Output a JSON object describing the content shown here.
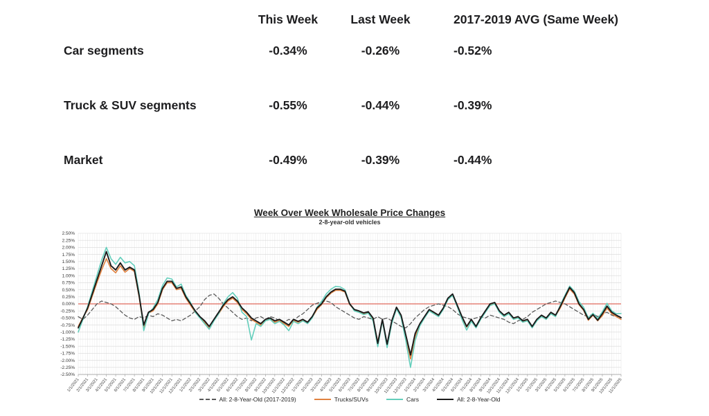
{
  "table": {
    "headers": [
      "This Week",
      "Last Week",
      "2017-2019 AVG (Same Week)"
    ],
    "rows": [
      {
        "label": "Car segments",
        "values": [
          "-0.34%",
          "-0.26%",
          "-0.52%"
        ]
      },
      {
        "label": "Truck & SUV segments",
        "values": [
          "-0.55%",
          "-0.44%",
          "-0.39%"
        ]
      },
      {
        "label": "Market",
        "values": [
          "-0.49%",
          "-0.39%",
          "-0.44%"
        ]
      }
    ]
  },
  "chart_data": {
    "type": "line",
    "title": "Week Over Week Wholesale Price Changes",
    "subtitle": "2-8-year-old vehicles",
    "ylabel": "",
    "xlabel": "",
    "ylim": [
      -2.5,
      2.5
    ],
    "ytick_step": 0.25,
    "grid": true,
    "legend_position": "bottom",
    "zero_line_color": "#e0695c",
    "points_per_month": 2,
    "ytick_labels": [
      "2.50%",
      "2.25%",
      "2.00%",
      "1.75%",
      "1.50%",
      "1.25%",
      "1.00%",
      "0.75%",
      "0.50%",
      "0.25%",
      "0.00%",
      "-0.25%",
      "-0.50%",
      "-0.75%",
      "-1.00%",
      "-1.25%",
      "-1.50%",
      "-1.75%",
      "-2.00%",
      "-2.25%",
      "-2.50%"
    ],
    "xtick_labels": [
      "1/1/2021",
      "2/1/2021",
      "3/1/2021",
      "4/1/2021",
      "5/1/2021",
      "6/1/2021",
      "7/1/2021",
      "8/1/2021",
      "9/1/2021",
      "10/1/2021",
      "11/1/2021",
      "12/1/2021",
      "1/1/2022",
      "2/1/2022",
      "3/1/2022",
      "4/1/2022",
      "5/1/2022",
      "6/1/2022",
      "7/1/2022",
      "8/1/2022",
      "9/1/2022",
      "10/1/2022",
      "11/1/2022",
      "12/1/2022",
      "1/1/2023",
      "2/1/2023",
      "3/1/2023",
      "4/1/2023",
      "5/1/2023",
      "6/1/2023",
      "7/1/2023",
      "8/1/2023",
      "9/1/2023",
      "10/1/2023",
      "11/1/2023",
      "12/1/2023",
      "1/1/2024",
      "2/1/2024",
      "3/1/2024",
      "4/1/2024",
      "5/1/2024",
      "6/1/2024",
      "7/1/2024",
      "8/1/2024",
      "9/1/2024",
      "10/1/2024",
      "11/1/2024",
      "12/1/2024",
      "1/1/2025",
      "2/1/2025",
      "3/1/2025",
      "4/1/2025",
      "5/1/2025",
      "6/1/2025",
      "7/1/2025",
      "8/1/2025",
      "9/1/2025",
      "10/1/2025",
      "11/1/2025"
    ],
    "series": [
      {
        "name": "All: 2-8-Year-Old (2017-2019)",
        "color": "#595959",
        "dash": true,
        "width": 1.3,
        "values": [
          -0.45,
          -0.55,
          -0.4,
          -0.2,
          0.0,
          0.1,
          0.05,
          0.0,
          -0.1,
          -0.25,
          -0.4,
          -0.5,
          -0.55,
          -0.45,
          -0.5,
          -0.4,
          -0.45,
          -0.35,
          -0.4,
          -0.5,
          -0.6,
          -0.55,
          -0.6,
          -0.5,
          -0.4,
          -0.25,
          -0.1,
          0.15,
          0.3,
          0.35,
          0.2,
          0.0,
          -0.15,
          -0.3,
          -0.45,
          -0.55,
          -0.5,
          -0.6,
          -0.5,
          -0.45,
          -0.55,
          -0.45,
          -0.5,
          -0.6,
          -0.65,
          -0.55,
          -0.6,
          -0.45,
          -0.35,
          -0.2,
          -0.05,
          0.02,
          0.08,
          0.1,
          0.05,
          -0.1,
          -0.2,
          -0.3,
          -0.4,
          -0.5,
          -0.55,
          -0.45,
          -0.5,
          -0.55,
          -0.45,
          -0.55,
          -0.5,
          -0.6,
          -0.7,
          -0.8,
          -0.85,
          -0.7,
          -0.5,
          -0.35,
          -0.2,
          -0.1,
          -0.05,
          0.0,
          -0.05,
          -0.1,
          -0.2,
          -0.35,
          -0.45,
          -0.5,
          -0.55,
          -0.5,
          -0.45,
          -0.5,
          -0.4,
          -0.45,
          -0.5,
          -0.55,
          -0.65,
          -0.7,
          -0.6,
          -0.55,
          -0.45,
          -0.3,
          -0.2,
          -0.1,
          0.0,
          0.05,
          0.1,
          0.05,
          0.0,
          -0.1,
          -0.2,
          -0.3,
          -0.4,
          -0.45,
          -0.35,
          -0.45,
          -0.35,
          -0.3,
          -0.4,
          -0.45,
          -0.44
        ]
      },
      {
        "name": "Trucks/SUVs",
        "color": "#e0813f",
        "dash": false,
        "width": 1.6,
        "values": [
          -0.8,
          -0.48,
          -0.2,
          0.28,
          0.75,
          1.2,
          1.6,
          1.25,
          1.1,
          1.35,
          1.12,
          1.25,
          1.15,
          0.25,
          -0.85,
          -0.32,
          -0.25,
          0.0,
          0.5,
          0.75,
          0.75,
          0.5,
          0.55,
          0.2,
          -0.05,
          -0.3,
          -0.48,
          -0.65,
          -0.88,
          -0.58,
          -0.35,
          -0.1,
          0.1,
          0.2,
          0.05,
          -0.2,
          -0.35,
          -0.55,
          -0.65,
          -0.75,
          -0.6,
          -0.55,
          -0.65,
          -0.58,
          -0.7,
          -0.8,
          -0.58,
          -0.65,
          -0.58,
          -0.68,
          -0.48,
          -0.2,
          -0.03,
          0.22,
          0.38,
          0.48,
          0.48,
          0.42,
          -0.02,
          -0.22,
          -0.28,
          -0.35,
          -0.3,
          -0.55,
          -1.35,
          -0.58,
          -1.5,
          -0.65,
          -0.15,
          -0.45,
          -1.15,
          -1.95,
          -1.15,
          -0.72,
          -0.47,
          -0.22,
          -0.32,
          -0.42,
          -0.17,
          0.17,
          0.32,
          -0.08,
          -0.48,
          -0.82,
          -0.57,
          -0.82,
          -0.52,
          -0.27,
          -0.02,
          0.02,
          -0.27,
          -0.42,
          -0.32,
          -0.52,
          -0.47,
          -0.62,
          -0.57,
          -0.82,
          -0.57,
          -0.42,
          -0.52,
          -0.32,
          -0.42,
          -0.15,
          0.2,
          0.53,
          0.35,
          -0.03,
          -0.23,
          -0.58,
          -0.4,
          -0.6,
          -0.42,
          -0.15,
          -0.35,
          -0.45,
          -0.55
        ]
      },
      {
        "name": "Cars",
        "color": "#63cebb",
        "dash": false,
        "width": 1.6,
        "values": [
          -1.0,
          -0.55,
          -0.1,
          0.45,
          1.0,
          1.55,
          2.0,
          1.6,
          1.4,
          1.65,
          1.45,
          1.5,
          1.35,
          0.4,
          -0.95,
          -0.35,
          -0.15,
          0.15,
          0.65,
          0.92,
          0.88,
          0.6,
          0.7,
          0.3,
          0.05,
          -0.3,
          -0.5,
          -0.7,
          -0.9,
          -0.6,
          -0.35,
          0.0,
          0.25,
          0.4,
          0.2,
          -0.3,
          -0.45,
          -1.28,
          -0.7,
          -0.8,
          -0.6,
          -0.55,
          -0.7,
          -0.62,
          -0.75,
          -0.95,
          -0.62,
          -0.7,
          -0.6,
          -0.7,
          -0.5,
          -0.12,
          0.08,
          0.35,
          0.52,
          0.62,
          0.6,
          0.5,
          0.02,
          -0.25,
          -0.3,
          -0.38,
          -0.33,
          -0.6,
          -1.52,
          -0.6,
          -1.55,
          -0.7,
          -0.18,
          -0.48,
          -1.3,
          -2.25,
          -1.3,
          -0.78,
          -0.5,
          -0.25,
          -0.35,
          -0.45,
          -0.2,
          0.15,
          0.3,
          -0.1,
          -0.55,
          -0.93,
          -0.62,
          -0.85,
          -0.55,
          -0.3,
          -0.06,
          0.0,
          -0.3,
          -0.45,
          -0.35,
          -0.55,
          -0.5,
          -0.65,
          -0.6,
          -0.85,
          -0.6,
          -0.45,
          -0.55,
          -0.35,
          -0.45,
          -0.05,
          0.3,
          0.63,
          0.45,
          0.08,
          -0.12,
          -0.5,
          -0.33,
          -0.52,
          -0.28,
          0.02,
          -0.25,
          -0.35,
          -0.34
        ]
      },
      {
        "name": "All: 2-8-Year-Old",
        "color": "#1a1a1a",
        "dash": false,
        "width": 1.9,
        "values": [
          -0.85,
          -0.5,
          -0.15,
          0.35,
          0.85,
          1.35,
          1.85,
          1.35,
          1.2,
          1.45,
          1.2,
          1.3,
          1.2,
          0.3,
          -0.75,
          -0.3,
          -0.2,
          0.05,
          0.55,
          0.8,
          0.8,
          0.55,
          0.6,
          0.25,
          0.0,
          -0.25,
          -0.45,
          -0.6,
          -0.8,
          -0.55,
          -0.3,
          -0.05,
          0.15,
          0.25,
          0.1,
          -0.15,
          -0.3,
          -0.5,
          -0.6,
          -0.7,
          -0.55,
          -0.5,
          -0.6,
          -0.55,
          -0.65,
          -0.75,
          -0.55,
          -0.62,
          -0.55,
          -0.65,
          -0.45,
          -0.15,
          0.0,
          0.25,
          0.42,
          0.52,
          0.52,
          0.45,
          0.0,
          -0.2,
          -0.25,
          -0.32,
          -0.28,
          -0.5,
          -1.4,
          -0.55,
          -1.43,
          -0.6,
          -0.12,
          -0.4,
          -1.1,
          -1.81,
          -1.05,
          -0.7,
          -0.45,
          -0.2,
          -0.3,
          -0.4,
          -0.15,
          0.2,
          0.35,
          -0.05,
          -0.45,
          -0.8,
          -0.55,
          -0.8,
          -0.5,
          -0.25,
          0.0,
          0.05,
          -0.25,
          -0.4,
          -0.3,
          -0.5,
          -0.45,
          -0.6,
          -0.55,
          -0.8,
          -0.55,
          -0.4,
          -0.5,
          -0.3,
          -0.4,
          -0.1,
          0.25,
          0.58,
          0.4,
          0.0,
          -0.2,
          -0.55,
          -0.38,
          -0.58,
          -0.35,
          -0.08,
          -0.3,
          -0.4,
          -0.49
        ]
      }
    ]
  }
}
